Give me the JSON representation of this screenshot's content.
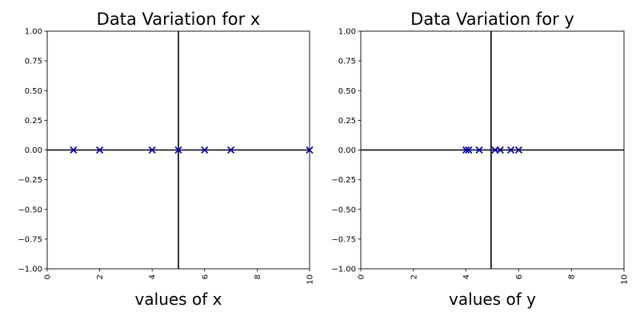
{
  "chart_data": [
    {
      "type": "scatter",
      "title": "Data Variation for x",
      "xlabel": "values of x",
      "ylabel": "",
      "xlim": [
        0,
        10
      ],
      "ylim": [
        -1,
        1
      ],
      "xticks": [
        "0",
        "2",
        "4",
        "6",
        "8",
        "10"
      ],
      "yticks": [
        "−1.00",
        "−0.75",
        "−0.50",
        "−0.25",
        "0.00",
        "0.25",
        "0.50",
        "0.75",
        "1.00"
      ],
      "tick_label_rotation_x": "vertical",
      "grid": false,
      "marker": "x",
      "marker_color": "#0000bb",
      "reference_lines": {
        "horizontal_y": 0,
        "vertical_x": 5,
        "color": "#000000"
      },
      "points": [
        {
          "x": 1,
          "y": 0
        },
        {
          "x": 2,
          "y": 0
        },
        {
          "x": 4,
          "y": 0
        },
        {
          "x": 5,
          "y": 0
        },
        {
          "x": 6,
          "y": 0
        },
        {
          "x": 7,
          "y": 0
        },
        {
          "x": 10,
          "y": 0
        }
      ]
    },
    {
      "type": "scatter",
      "title": "Data Variation for y",
      "xlabel": "values of y",
      "ylabel": "",
      "xlim": [
        0,
        10
      ],
      "ylim": [
        -1,
        1
      ],
      "xticks": [
        "0",
        "2",
        "4",
        "6",
        "8",
        "10"
      ],
      "yticks": [
        "−1.00",
        "−0.75",
        "−0.50",
        "−0.25",
        "0.00",
        "0.25",
        "0.50",
        "0.75",
        "1.00"
      ],
      "tick_label_rotation_x": "vertical",
      "grid": false,
      "marker": "x",
      "marker_color": "#0000bb",
      "reference_lines": {
        "horizontal_y": 0,
        "vertical_x": 4.95,
        "color": "#000000"
      },
      "points": [
        {
          "x": 4.0,
          "y": 0
        },
        {
          "x": 4.1,
          "y": 0
        },
        {
          "x": 4.5,
          "y": 0
        },
        {
          "x": 5.1,
          "y": 0
        },
        {
          "x": 5.3,
          "y": 0
        },
        {
          "x": 5.7,
          "y": 0
        },
        {
          "x": 6.0,
          "y": 0
        }
      ]
    }
  ]
}
